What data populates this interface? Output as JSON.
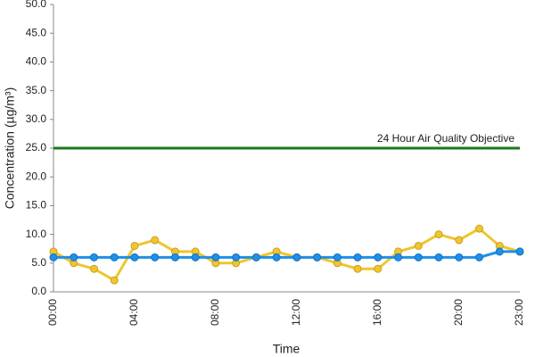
{
  "chart_data": {
    "type": "line",
    "x_label": "Time",
    "y_label": "Concentration (µg/m³)",
    "categories": [
      "00:00",
      null,
      null,
      null,
      "04:00",
      null,
      null,
      null,
      "08:00",
      null,
      null,
      null,
      "12:00",
      null,
      null,
      null,
      "16:00",
      null,
      null,
      null,
      "20:00",
      null,
      null,
      "23:00"
    ],
    "series": [
      {
        "color": "#f0c52e",
        "values": [
          7,
          5,
          4,
          2,
          8,
          9,
          7,
          7,
          5,
          5,
          6,
          7,
          6,
          6,
          5,
          4,
          4,
          7,
          8,
          10,
          9,
          11,
          8,
          7
        ]
      },
      {
        "color": "#1e90e8",
        "values": [
          6,
          6,
          6,
          6,
          6,
          6,
          6,
          6,
          6,
          6,
          6,
          6,
          6,
          6,
          6,
          6,
          6,
          6,
          6,
          6,
          6,
          6,
          7,
          7
        ]
      }
    ],
    "reference_line": {
      "value": 25,
      "label": "24 Hour Air Quality Objective",
      "color": "#1a7a1a"
    },
    "ylim": [
      0,
      50
    ],
    "yticks": [
      {
        "value": 0,
        "label": "0.0"
      },
      {
        "value": 5,
        "label": "5.0"
      },
      {
        "value": 10,
        "label": "10.0"
      },
      {
        "value": 15,
        "label": "15.0"
      },
      {
        "value": 20,
        "label": "20.0"
      },
      {
        "value": 25,
        "label": "25.0"
      },
      {
        "value": 30,
        "label": "30.0"
      },
      {
        "value": 35,
        "label": "35.0"
      },
      {
        "value": 40,
        "label": "40.0"
      },
      {
        "value": 45,
        "label": "45.0"
      },
      {
        "value": 50,
        "label": "50.0"
      }
    ],
    "grid": false
  }
}
